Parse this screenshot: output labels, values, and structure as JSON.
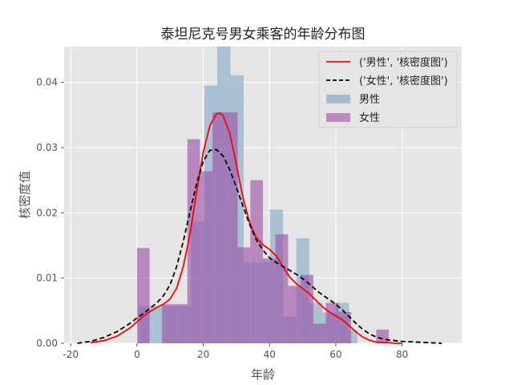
{
  "chart_data": {
    "type": "bar",
    "title": "泰坦尼克号男女乘客的年龄分布图",
    "xlabel": "年龄",
    "ylabel": "核密度值",
    "xlim": [
      -22,
      98
    ],
    "ylim": [
      0,
      0.0455
    ],
    "xticks": [
      -20,
      0,
      20,
      40,
      60,
      80
    ],
    "xtick_labels": [
      "-20",
      "0",
      "20",
      "40",
      "60",
      "80"
    ],
    "yticks": [
      0.0,
      0.01,
      0.02,
      0.03,
      0.04
    ],
    "ytick_labels": [
      "0.00",
      "0.01",
      "0.02",
      "0.03",
      "0.04"
    ],
    "grid": true,
    "legend_position": "upper right",
    "legend": [
      "('男性', '核密度图')",
      "('女性', '核密度图')",
      "男性",
      "女性"
    ],
    "series": [
      {
        "name": "男性",
        "kind": "histogram",
        "color": "#a3bcd1",
        "bins": [
          {
            "x0": 0.4,
            "x1": 4.4,
            "value": 0.0057
          },
          {
            "x0": 4.4,
            "x1": 8.3,
            "value": 0.0057
          },
          {
            "x0": 8.3,
            "x1": 12.3,
            "value": 0.0057
          },
          {
            "x0": 12.3,
            "x1": 16.3,
            "value": 0.0057
          },
          {
            "x0": 16.3,
            "x1": 20.3,
            "value": 0.0187
          },
          {
            "x0": 20.3,
            "x1": 24.2,
            "value": 0.0395
          },
          {
            "x0": 24.2,
            "x1": 28.2,
            "value": 0.0455
          },
          {
            "x0": 28.2,
            "x1": 32.2,
            "value": 0.0411
          },
          {
            "x0": 32.2,
            "x1": 36.1,
            "value": 0.0124
          },
          {
            "x0": 36.1,
            "x1": 40.1,
            "value": 0.0124
          },
          {
            "x0": 40.1,
            "x1": 44.1,
            "value": 0.0205
          },
          {
            "x0": 44.1,
            "x1": 48.1,
            "value": 0.0041
          },
          {
            "x0": 48.1,
            "x1": 52.0,
            "value": 0.0161
          },
          {
            "x0": 52.0,
            "x1": 56.0,
            "value": 0.0062
          },
          {
            "x0": 56.0,
            "x1": 60.0,
            "value": 0.0047
          },
          {
            "x0": 60.0,
            "x1": 64.0,
            "value": 0.0062
          },
          {
            "x0": 64.0,
            "x1": 66.5,
            "value": 0.0021
          }
        ]
      },
      {
        "name": "女性",
        "kind": "histogram",
        "color": "#9c56a8",
        "bins": [
          {
            "x0": 0.0,
            "x1": 3.8,
            "value": 0.0146
          },
          {
            "x0": 3.8,
            "x1": 7.6,
            "value": 0.0
          },
          {
            "x0": 7.6,
            "x1": 11.4,
            "value": 0.006
          },
          {
            "x0": 11.4,
            "x1": 15.2,
            "value": 0.006
          },
          {
            "x0": 15.2,
            "x1": 19.0,
            "value": 0.0313
          },
          {
            "x0": 19.0,
            "x1": 22.8,
            "value": 0.0264
          },
          {
            "x0": 22.8,
            "x1": 26.6,
            "value": 0.0354
          },
          {
            "x0": 26.6,
            "x1": 30.4,
            "value": 0.0354
          },
          {
            "x0": 30.4,
            "x1": 34.2,
            "value": 0.0147
          },
          {
            "x0": 34.2,
            "x1": 38.0,
            "value": 0.025
          },
          {
            "x0": 38.0,
            "x1": 41.8,
            "value": 0.013
          },
          {
            "x0": 41.8,
            "x1": 45.6,
            "value": 0.0167
          },
          {
            "x0": 45.6,
            "x1": 49.4,
            "value": 0.0088
          },
          {
            "x0": 49.4,
            "x1": 53.2,
            "value": 0.0105
          },
          {
            "x0": 53.2,
            "x1": 57.0,
            "value": 0.003
          },
          {
            "x0": 57.0,
            "x1": 60.8,
            "value": 0.0062
          },
          {
            "x0": 60.8,
            "x1": 64.6,
            "value": 0.0048
          },
          {
            "x0": 64.6,
            "x1": 68.4,
            "value": 0.0
          },
          {
            "x0": 68.4,
            "x1": 72.2,
            "value": 0.0
          },
          {
            "x0": 72.2,
            "x1": 76.0,
            "value": 0.0021
          }
        ]
      },
      {
        "name": "('男性', '核密度图')",
        "kind": "kde",
        "color": "#ff0000",
        "style": "solid",
        "x": [
          -14,
          -10,
          -6,
          -2,
          0,
          2,
          4,
          6,
          8,
          10,
          12,
          14,
          16,
          18,
          20,
          22,
          24,
          25,
          26,
          28,
          30,
          32,
          34,
          36,
          38,
          40,
          42,
          44,
          46,
          48,
          50,
          52,
          54,
          56,
          58,
          60,
          62,
          64,
          66,
          68,
          70,
          72,
          74,
          76,
          78,
          80
        ],
        "y": [
          0.0001,
          0.0004,
          0.0011,
          0.0024,
          0.0033,
          0.0042,
          0.0049,
          0.0055,
          0.006,
          0.0068,
          0.0085,
          0.0118,
          0.0168,
          0.0232,
          0.0293,
          0.0334,
          0.0352,
          0.0353,
          0.0349,
          0.0322,
          0.0274,
          0.0223,
          0.0185,
          0.0162,
          0.0151,
          0.0144,
          0.0134,
          0.0118,
          0.0102,
          0.0092,
          0.0084,
          0.0076,
          0.0066,
          0.0056,
          0.0048,
          0.0042,
          0.0036,
          0.0027,
          0.0018,
          0.001,
          0.0005,
          0.0002,
          0.0001,
          0.0001,
          0.0,
          0.0
        ]
      },
      {
        "name": "('女性', '核密度图')",
        "kind": "kde",
        "color": "#000000",
        "style": "dashed",
        "x": [
          -18,
          -14,
          -10,
          -6,
          -2,
          0,
          2,
          4,
          6,
          8,
          10,
          12,
          14,
          16,
          18,
          20,
          22,
          24,
          26,
          28,
          30,
          32,
          34,
          36,
          38,
          40,
          42,
          44,
          46,
          48,
          50,
          52,
          54,
          56,
          58,
          60,
          62,
          64,
          66,
          68,
          70,
          72,
          74,
          76,
          80,
          84,
          88,
          92
        ],
        "y": [
          0.0,
          0.0003,
          0.0009,
          0.0018,
          0.0031,
          0.0039,
          0.0046,
          0.0054,
          0.0062,
          0.0073,
          0.009,
          0.0118,
          0.0157,
          0.0202,
          0.0245,
          0.0279,
          0.0296,
          0.0297,
          0.0287,
          0.0266,
          0.0239,
          0.021,
          0.0182,
          0.0159,
          0.0143,
          0.0131,
          0.0124,
          0.0118,
          0.0112,
          0.0106,
          0.0099,
          0.0091,
          0.0082,
          0.0074,
          0.0067,
          0.006,
          0.0051,
          0.0041,
          0.0031,
          0.0022,
          0.0015,
          0.001,
          0.0007,
          0.0005,
          0.0003,
          0.0002,
          0.0001,
          0.0
        ]
      }
    ]
  },
  "title": "泰坦尼克号男女乘客的年龄分布图",
  "xlabel": "年龄",
  "ylabel": "核密度值",
  "legend": {
    "items": [
      {
        "label": "('男性', '核密度图')",
        "type": "line",
        "color": "#ff0000",
        "dash": ""
      },
      {
        "label": "('女性', '核密度图')",
        "type": "line",
        "color": "#000000",
        "dash": "5,3"
      },
      {
        "label": "男性",
        "type": "patch",
        "color": "#a3bcd1"
      },
      {
        "label": "女性",
        "type": "patch",
        "color": "#bf8ac4"
      }
    ]
  },
  "colors": {
    "plot_bg": "#e5e5e5",
    "grid": "#ffffff",
    "male_bar": "#a3bcd1",
    "female_bar": "#9c56a8",
    "male_kde": "#ff0000",
    "female_kde": "#000000"
  }
}
